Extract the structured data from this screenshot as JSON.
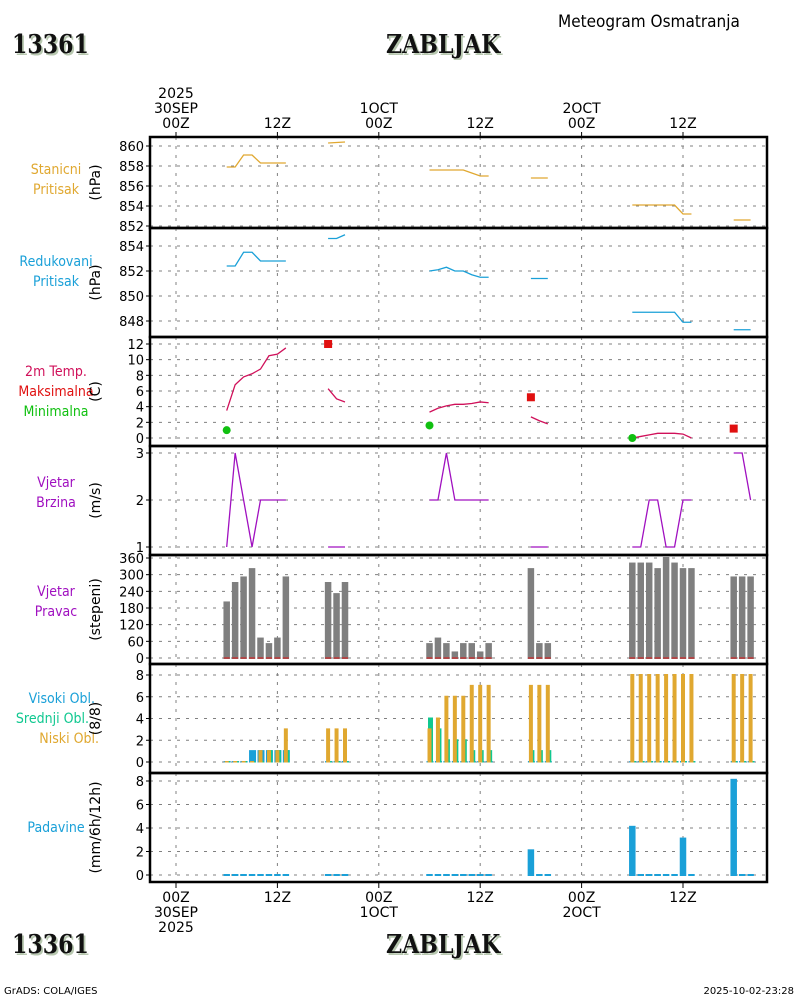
{
  "header": {
    "station_id": "13361",
    "station_name": "ZABLJAK",
    "subtitle": "Meteogram Osmatranja"
  },
  "footer": {
    "station_id": "13361",
    "station_name": "ZABLJAK",
    "credit": "GrADS: COLA/IGES",
    "timestamp": "2025-10-02-23:28"
  },
  "time_axis": {
    "year": "2025",
    "ticks": [
      {
        "hour": 0,
        "label": "00Z",
        "date": "30SEP"
      },
      {
        "hour": 12,
        "label": "12Z",
        "date": ""
      },
      {
        "hour": 24,
        "label": "00Z",
        "date": "1OCT"
      },
      {
        "hour": 36,
        "label": "12Z",
        "date": ""
      },
      {
        "hour": 48,
        "label": "00Z",
        "date": "2OCT"
      },
      {
        "hour": 60,
        "label": "12Z",
        "date": ""
      }
    ],
    "range_hours": [
      -3,
      70
    ]
  },
  "panels": [
    {
      "id": "stanicni",
      "labels": [
        "Stanicni",
        "Pritisak"
      ],
      "label_colors": [
        "#e0a830",
        "#e0a830"
      ],
      "unit": "(hPa)"
    },
    {
      "id": "redukovani",
      "labels": [
        "Redukovani",
        "Pritisak"
      ],
      "label_colors": [
        "#1aa0d8",
        "#1aa0d8"
      ],
      "unit": "(hPa)"
    },
    {
      "id": "temp",
      "labels": [
        "2m Temp.",
        "Maksimalna",
        "Minimalna"
      ],
      "label_colors": [
        "#d0105a",
        "#e01010",
        "#10c010"
      ],
      "unit": "(C)"
    },
    {
      "id": "wspd",
      "labels": [
        "Vjetar",
        "Brzina"
      ],
      "label_colors": [
        "#a010c0",
        "#a010c0"
      ],
      "unit": "(m/s)"
    },
    {
      "id": "wdir",
      "labels": [
        "Vjetar",
        "Pravac"
      ],
      "label_colors": [
        "#a010c0",
        "#a010c0"
      ],
      "unit": "(stepeni)"
    },
    {
      "id": "clouds",
      "labels": [
        "Visoki Obl.",
        "Srednji Obl.",
        "Niski Obl."
      ],
      "label_colors": [
        "#1aa0d8",
        "#10c890",
        "#e0a830"
      ],
      "unit": "(8/8)"
    },
    {
      "id": "precip",
      "labels": [
        "Padavine"
      ],
      "label_colors": [
        "#1aa0d8"
      ],
      "unit": "(mm/6h/12h)"
    }
  ],
  "chart_data": [
    {
      "type": "line",
      "title": "Stanicni Pritisak",
      "ylabel": "(hPa)",
      "ylim": [
        852,
        861
      ],
      "yticks": [
        852,
        854,
        856,
        858,
        860
      ],
      "color": "#e0a830",
      "grid": true,
      "segments": [
        {
          "x": [
            6,
            7,
            8,
            9,
            10,
            11,
            12,
            13
          ],
          "y": [
            857.9,
            857.9,
            859.1,
            859.1,
            858.3,
            858.3,
            858.3,
            858.3
          ]
        },
        {
          "x": [
            18,
            20
          ],
          "y": [
            860.3,
            860.4
          ]
        },
        {
          "x": [
            30,
            31,
            32,
            33,
            34,
            35,
            36,
            37
          ],
          "y": [
            857.6,
            857.6,
            857.6,
            857.6,
            857.6,
            857.3,
            857.0,
            857.0
          ]
        },
        {
          "x": [
            42,
            44
          ],
          "y": [
            856.8,
            856.8
          ]
        },
        {
          "x": [
            54,
            55,
            56,
            57,
            58,
            59,
            60,
            61
          ],
          "y": [
            854.1,
            854.1,
            854.1,
            854.1,
            854.1,
            854.1,
            853.2,
            853.2
          ]
        },
        {
          "x": [
            66,
            68
          ],
          "y": [
            852.6,
            852.6
          ]
        }
      ]
    },
    {
      "type": "line",
      "title": "Redukovani Pritisak",
      "ylabel": "(hPa)",
      "ylim": [
        847,
        855.4
      ],
      "yticks": [
        848,
        850,
        852,
        854
      ],
      "color": "#1aa0d8",
      "grid": true,
      "segments": [
        {
          "x": [
            6,
            7,
            8,
            9,
            10,
            11,
            12,
            13
          ],
          "y": [
            852.4,
            852.4,
            853.5,
            853.5,
            852.8,
            852.8,
            852.8,
            852.8
          ]
        },
        {
          "x": [
            18,
            19,
            20
          ],
          "y": [
            854.6,
            854.6,
            854.9
          ]
        },
        {
          "x": [
            30,
            31,
            32,
            33,
            34,
            35,
            36,
            37
          ],
          "y": [
            852.0,
            852.1,
            852.3,
            852.0,
            852.0,
            851.7,
            851.5,
            851.5
          ]
        },
        {
          "x": [
            42,
            44
          ],
          "y": [
            851.4,
            851.4
          ]
        },
        {
          "x": [
            54,
            55,
            56,
            57,
            58,
            59,
            60,
            61
          ],
          "y": [
            848.7,
            848.7,
            848.7,
            848.7,
            848.7,
            848.7,
            847.9,
            847.9
          ]
        },
        {
          "x": [
            66,
            68
          ],
          "y": [
            847.3,
            847.3
          ]
        }
      ]
    },
    {
      "type": "line",
      "title": "2m Temp.",
      "ylabel": "(C)",
      "ylim": [
        -0.8,
        13
      ],
      "yticks": [
        0,
        2,
        4,
        6,
        8,
        10,
        12
      ],
      "color": "#d0105a",
      "grid": true,
      "segments": [
        {
          "x": [
            6,
            7,
            8,
            9,
            10,
            11,
            12,
            13
          ],
          "y": [
            3.5,
            6.8,
            7.8,
            8.2,
            8.8,
            10.5,
            10.7,
            11.5
          ]
        },
        {
          "x": [
            18,
            19,
            20
          ],
          "y": [
            6.3,
            5.0,
            4.6
          ]
        },
        {
          "x": [
            30,
            31,
            32,
            33,
            34,
            35,
            36,
            37
          ],
          "y": [
            3.3,
            3.8,
            4.1,
            4.3,
            4.3,
            4.4,
            4.6,
            4.5
          ]
        },
        {
          "x": [
            42,
            43,
            44
          ],
          "y": [
            2.7,
            2.2,
            1.8
          ]
        },
        {
          "x": [
            54,
            55,
            56,
            57,
            58,
            59,
            60,
            61
          ],
          "y": [
            0.0,
            0.2,
            0.4,
            0.6,
            0.6,
            0.6,
            0.5,
            0.0
          ]
        }
      ],
      "max_markers": {
        "x": [
          18,
          42,
          66
        ],
        "y": [
          12.0,
          5.2,
          1.2
        ],
        "color": "#e01010"
      },
      "min_markers": {
        "x": [
          6,
          30,
          54
        ],
        "y": [
          1.0,
          1.6,
          0.0
        ],
        "color": "#10c010"
      }
    },
    {
      "type": "line",
      "title": "Vjetar Brzina",
      "ylabel": "(m/s)",
      "ylim": [
        0.95,
        3.05
      ],
      "yticks": [
        1,
        2,
        3
      ],
      "color": "#a010c0",
      "grid": true,
      "segments": [
        {
          "x": [
            6,
            7,
            8,
            9,
            10,
            11,
            12,
            13
          ],
          "y": [
            1,
            3,
            2,
            1,
            2,
            2,
            2,
            2
          ]
        },
        {
          "x": [
            18,
            20
          ],
          "y": [
            1,
            1
          ]
        },
        {
          "x": [
            30,
            31,
            32,
            33,
            34,
            35,
            36,
            37
          ],
          "y": [
            2,
            2,
            3,
            2,
            2,
            2,
            2,
            2
          ]
        },
        {
          "x": [
            42,
            44
          ],
          "y": [
            1,
            1
          ]
        },
        {
          "x": [
            54,
            55,
            56,
            57,
            58,
            59,
            60,
            61
          ],
          "y": [
            1,
            1,
            2,
            2,
            1,
            1,
            2,
            2
          ]
        },
        {
          "x": [
            66,
            67,
            68
          ],
          "y": [
            3,
            3,
            2
          ]
        }
      ]
    },
    {
      "type": "bar",
      "title": "Vjetar Pravac",
      "ylabel": "(stepeni)",
      "ylim": [
        -12,
        368
      ],
      "yticks": [
        0,
        60,
        120,
        180,
        240,
        300,
        360
      ],
      "color": "#7f7f7f",
      "grid": true,
      "x": [
        6,
        7,
        8,
        9,
        10,
        11,
        12,
        13,
        18,
        19,
        20,
        30,
        31,
        32,
        33,
        34,
        35,
        36,
        37,
        42,
        43,
        44,
        54,
        55,
        56,
        57,
        58,
        59,
        60,
        61,
        66,
        67,
        68
      ],
      "values": [
        200,
        270,
        290,
        320,
        70,
        50,
        70,
        290,
        270,
        230,
        270,
        50,
        70,
        50,
        20,
        50,
        50,
        20,
        50,
        320,
        50,
        50,
        340,
        340,
        340,
        320,
        360,
        340,
        320,
        320,
        290,
        290,
        290
      ],
      "calm_marker_color": "#e01010"
    },
    {
      "type": "bar",
      "title": "Oblacnost",
      "ylabel": "(8/8)",
      "ylim": [
        -0.6,
        8.6
      ],
      "yticks": [
        0,
        2,
        4,
        6,
        8
      ],
      "grid": true,
      "x": [
        6,
        7,
        8,
        9,
        10,
        11,
        12,
        13,
        18,
        19,
        20,
        30,
        31,
        32,
        33,
        34,
        35,
        36,
        37,
        42,
        43,
        44,
        54,
        55,
        56,
        57,
        58,
        59,
        60,
        61,
        66,
        67,
        68
      ],
      "series": [
        {
          "name": "Visoki Obl.",
          "color": "#1aa0d8",
          "values": [
            0,
            0,
            0,
            1,
            1,
            1,
            1,
            1,
            0,
            0,
            0,
            0,
            0,
            0,
            0,
            0,
            0,
            0,
            0,
            0,
            0,
            0,
            0,
            0,
            0,
            0,
            0,
            0,
            0,
            0,
            0,
            0,
            0
          ]
        },
        {
          "name": "Srednji Obl.",
          "color": "#10c890",
          "values": [
            0,
            0,
            0,
            0,
            0,
            1,
            1,
            1,
            0,
            0,
            0,
            4,
            3,
            2,
            2,
            2,
            1,
            1,
            1,
            1,
            1,
            1,
            0,
            0,
            0,
            0,
            0,
            0,
            0,
            0,
            0,
            0,
            0
          ]
        },
        {
          "name": "Niski Obl.",
          "color": "#e0a830",
          "values": [
            0,
            0,
            0,
            0,
            1,
            1,
            1,
            3,
            3,
            3,
            3,
            3,
            4,
            6,
            6,
            6,
            7,
            7,
            7,
            7,
            7,
            7,
            8,
            8,
            8,
            8,
            8,
            8,
            8,
            8,
            8,
            8,
            8
          ]
        }
      ]
    },
    {
      "type": "bar",
      "title": "Padavine",
      "ylabel": "(mm/6h/12h)",
      "ylim": [
        -0.3,
        8.8
      ],
      "yticks": [
        0,
        2,
        4,
        6,
        8
      ],
      "color": "#1aa0d8",
      "grid": true,
      "x": [
        6,
        7,
        8,
        9,
        10,
        11,
        12,
        13,
        18,
        19,
        20,
        30,
        31,
        32,
        33,
        34,
        35,
        36,
        37,
        42,
        43,
        44,
        54,
        55,
        56,
        57,
        58,
        59,
        60,
        61,
        66,
        67,
        68
      ],
      "values": [
        0,
        0,
        0,
        0,
        0,
        0,
        0,
        0,
        0,
        0,
        0,
        0,
        0,
        0,
        0,
        0,
        0,
        0,
        0,
        2.1,
        0,
        0,
        4.1,
        0,
        0,
        0,
        0,
        0,
        3.1,
        0,
        8.1,
        0,
        0
      ]
    }
  ]
}
